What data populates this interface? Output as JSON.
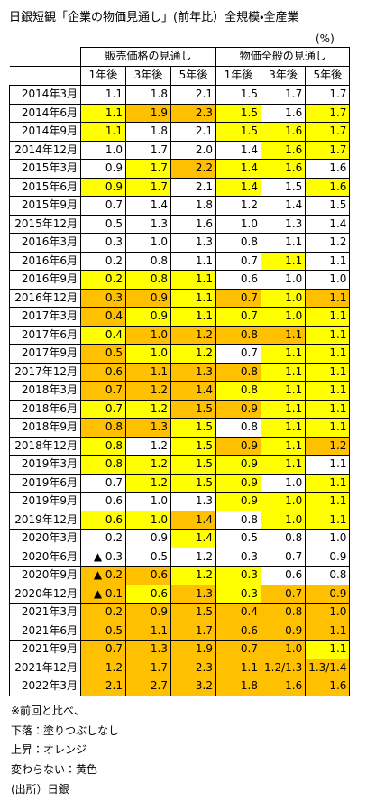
{
  "header": {
    "title": "日銀短観「企業の物価見通し」(前年比）全規模・全産業",
    "unit": "(%)"
  },
  "table": {
    "groups": [
      "販売価格の見通し",
      "物価全般の見通し"
    ],
    "columns": [
      "1年後",
      "3年後",
      "5年後",
      "1年後",
      "3年後",
      "5年後"
    ],
    "rows": [
      {
        "date": "2014年3月",
        "values": [
          "1.1",
          "1.8",
          "2.1",
          "1.5",
          "1.7",
          "1.7"
        ],
        "fills": [
          "#ffffff",
          "#ffffff",
          "#ffffff",
          "#ffffff",
          "#ffffff",
          "#ffffff"
        ]
      },
      {
        "date": "2014年6月",
        "values": [
          "1.1",
          "1.9",
          "2.3",
          "1.5",
          "1.6",
          "1.7"
        ],
        "fills": [
          "#ffff00",
          "#ffc000",
          "#ffc000",
          "#ffff00",
          "#ffffff",
          "#ffff00"
        ]
      },
      {
        "date": "2014年9月",
        "values": [
          "1.1",
          "1.8",
          "2.1",
          "1.5",
          "1.6",
          "1.7"
        ],
        "fills": [
          "#ffff00",
          "#ffffff",
          "#ffffff",
          "#ffff00",
          "#ffff00",
          "#ffff00"
        ]
      },
      {
        "date": "2014年12月",
        "values": [
          "1.0",
          "1.7",
          "2.0",
          "1.4",
          "1.6",
          "1.7"
        ],
        "fills": [
          "#ffffff",
          "#ffffff",
          "#ffffff",
          "#ffffff",
          "#ffff00",
          "#ffff00"
        ]
      },
      {
        "date": "2015年3月",
        "values": [
          "0.9",
          "1.7",
          "2.2",
          "1.4",
          "1.6",
          "1.6"
        ],
        "fills": [
          "#ffffff",
          "#ffff00",
          "#ffc000",
          "#ffff00",
          "#ffff00",
          "#ffffff"
        ]
      },
      {
        "date": "2015年6月",
        "values": [
          "0.9",
          "1.7",
          "2.1",
          "1.4",
          "1.5",
          "1.6"
        ],
        "fills": [
          "#ffff00",
          "#ffff00",
          "#ffffff",
          "#ffff00",
          "#ffffff",
          "#ffff00"
        ]
      },
      {
        "date": "2015年9月",
        "values": [
          "0.7",
          "1.4",
          "1.8",
          "1.2",
          "1.4",
          "1.5"
        ],
        "fills": [
          "#ffffff",
          "#ffffff",
          "#ffffff",
          "#ffffff",
          "#ffffff",
          "#ffffff"
        ]
      },
      {
        "date": "2015年12月",
        "values": [
          "0.5",
          "1.3",
          "1.6",
          "1.0",
          "1.3",
          "1.4"
        ],
        "fills": [
          "#ffffff",
          "#ffffff",
          "#ffffff",
          "#ffffff",
          "#ffffff",
          "#ffffff"
        ]
      },
      {
        "date": "2016年3月",
        "values": [
          "0.3",
          "1.0",
          "1.3",
          "0.8",
          "1.1",
          "1.2"
        ],
        "fills": [
          "#ffffff",
          "#ffffff",
          "#ffffff",
          "#ffffff",
          "#ffffff",
          "#ffffff"
        ]
      },
      {
        "date": "2016年6月",
        "values": [
          "0.2",
          "0.8",
          "1.1",
          "0.7",
          "1.1",
          "1.1"
        ],
        "fills": [
          "#ffffff",
          "#ffffff",
          "#ffffff",
          "#ffffff",
          "#ffff00",
          "#ffffff"
        ]
      },
      {
        "date": "2016年9月",
        "values": [
          "0.2",
          "0.8",
          "1.1",
          "0.6",
          "1.0",
          "1.0"
        ],
        "fills": [
          "#ffff00",
          "#ffff00",
          "#ffff00",
          "#ffffff",
          "#ffffff",
          "#ffffff"
        ]
      },
      {
        "date": "2016年12月",
        "values": [
          "0.3",
          "0.9",
          "1.1",
          "0.7",
          "1.0",
          "1.1"
        ],
        "fills": [
          "#ffc000",
          "#ffc000",
          "#ffff00",
          "#ffc000",
          "#ffff00",
          "#ffc000"
        ]
      },
      {
        "date": "2017年3月",
        "values": [
          "0.4",
          "0.9",
          "1.1",
          "0.7",
          "1.0",
          "1.1"
        ],
        "fills": [
          "#ffc000",
          "#ffff00",
          "#ffff00",
          "#ffff00",
          "#ffff00",
          "#ffff00"
        ]
      },
      {
        "date": "2017年6月",
        "values": [
          "0.4",
          "1.0",
          "1.2",
          "0.8",
          "1.1",
          "1.1"
        ],
        "fills": [
          "#ffff00",
          "#ffc000",
          "#ffc000",
          "#ffc000",
          "#ffc000",
          "#ffff00"
        ]
      },
      {
        "date": "2017年9月",
        "values": [
          "0.5",
          "1.0",
          "1.2",
          "0.7",
          "1.1",
          "1.1"
        ],
        "fills": [
          "#ffc000",
          "#ffff00",
          "#ffff00",
          "#ffffff",
          "#ffff00",
          "#ffff00"
        ]
      },
      {
        "date": "2017年12月",
        "values": [
          "0.6",
          "1.1",
          "1.3",
          "0.8",
          "1.1",
          "1.1"
        ],
        "fills": [
          "#ffc000",
          "#ffc000",
          "#ffc000",
          "#ffc000",
          "#ffff00",
          "#ffff00"
        ]
      },
      {
        "date": "2018年3月",
        "values": [
          "0.7",
          "1.2",
          "1.4",
          "0.8",
          "1.1",
          "1.1"
        ],
        "fills": [
          "#ffc000",
          "#ffc000",
          "#ffc000",
          "#ffff00",
          "#ffff00",
          "#ffff00"
        ]
      },
      {
        "date": "2018年6月",
        "values": [
          "0.7",
          "1.2",
          "1.5",
          "0.9",
          "1.1",
          "1.1"
        ],
        "fills": [
          "#ffff00",
          "#ffff00",
          "#ffc000",
          "#ffc000",
          "#ffff00",
          "#ffff00"
        ]
      },
      {
        "date": "2018年9月",
        "values": [
          "0.8",
          "1.3",
          "1.5",
          "0.8",
          "1.1",
          "1.1"
        ],
        "fills": [
          "#ffc000",
          "#ffc000",
          "#ffff00",
          "#ffffff",
          "#ffff00",
          "#ffff00"
        ]
      },
      {
        "date": "2018年12月",
        "values": [
          "0.8",
          "1.2",
          "1.5",
          "0.9",
          "1.1",
          "1.2"
        ],
        "fills": [
          "#ffff00",
          "#ffffff",
          "#ffff00",
          "#ffc000",
          "#ffff00",
          "#ffc000"
        ]
      },
      {
        "date": "2019年3月",
        "values": [
          "0.8",
          "1.2",
          "1.5",
          "0.9",
          "1.1",
          "1.1"
        ],
        "fills": [
          "#ffff00",
          "#ffff00",
          "#ffff00",
          "#ffff00",
          "#ffff00",
          "#ffffff"
        ]
      },
      {
        "date": "2019年6月",
        "values": [
          "0.7",
          "1.2",
          "1.5",
          "0.9",
          "1.0",
          "1.1"
        ],
        "fills": [
          "#ffffff",
          "#ffff00",
          "#ffff00",
          "#ffff00",
          "#ffffff",
          "#ffff00"
        ]
      },
      {
        "date": "2019年9月",
        "values": [
          "0.6",
          "1.0",
          "1.3",
          "0.9",
          "1.0",
          "1.1"
        ],
        "fills": [
          "#ffffff",
          "#ffffff",
          "#ffffff",
          "#ffff00",
          "#ffff00",
          "#ffff00"
        ]
      },
      {
        "date": "2019年12月",
        "values": [
          "0.6",
          "1.0",
          "1.4",
          "0.8",
          "1.0",
          "1.1"
        ],
        "fills": [
          "#ffff00",
          "#ffff00",
          "#ffc000",
          "#ffffff",
          "#ffff00",
          "#ffff00"
        ]
      },
      {
        "date": "2020年3月",
        "values": [
          "0.2",
          "0.9",
          "1.4",
          "0.5",
          "0.8",
          "1.0"
        ],
        "fills": [
          "#ffffff",
          "#ffffff",
          "#ffff00",
          "#ffffff",
          "#ffffff",
          "#ffffff"
        ]
      },
      {
        "date": "2020年6月",
        "values": [
          "▲ 0.3",
          "0.5",
          "1.2",
          "0.3",
          "0.7",
          "0.9"
        ],
        "fills": [
          "#ffffff",
          "#ffffff",
          "#ffffff",
          "#ffffff",
          "#ffffff",
          "#ffffff"
        ]
      },
      {
        "date": "2020年9月",
        "values": [
          "▲ 0.2",
          "0.6",
          "1.2",
          "0.3",
          "0.6",
          "0.8"
        ],
        "fills": [
          "#ffc000",
          "#ffc000",
          "#ffff00",
          "#ffff00",
          "#ffffff",
          "#ffffff"
        ]
      },
      {
        "date": "2020年12月",
        "values": [
          "▲ 0.1",
          "0.6",
          "1.3",
          "0.3",
          "0.7",
          "0.9"
        ],
        "fills": [
          "#ffc000",
          "#ffff00",
          "#ffc000",
          "#ffff00",
          "#ffc000",
          "#ffc000"
        ]
      },
      {
        "date": "2021年3月",
        "values": [
          "0.2",
          "0.9",
          "1.5",
          "0.4",
          "0.8",
          "1.0"
        ],
        "fills": [
          "#ffc000",
          "#ffc000",
          "#ffc000",
          "#ffc000",
          "#ffc000",
          "#ffc000"
        ]
      },
      {
        "date": "2021年6月",
        "values": [
          "0.5",
          "1.1",
          "1.7",
          "0.6",
          "0.9",
          "1.1"
        ],
        "fills": [
          "#ffc000",
          "#ffc000",
          "#ffc000",
          "#ffc000",
          "#ffc000",
          "#ffc000"
        ]
      },
      {
        "date": "2021年9月",
        "values": [
          "0.7",
          "1.3",
          "1.9",
          "0.7",
          "1.0",
          "1.1"
        ],
        "fills": [
          "#ffc000",
          "#ffc000",
          "#ffc000",
          "#ffc000",
          "#ffc000",
          "#ffff00"
        ]
      },
      {
        "date": "2021年12月",
        "values": [
          "1.2",
          "1.7",
          "2.3",
          "1.1",
          "1.2/1.3",
          "1.3/1.4"
        ],
        "fills": [
          "#ffc000",
          "#ffc000",
          "#ffc000",
          "#ffc000",
          "#ffc000",
          "#ffc000"
        ]
      },
      {
        "date": "2022年3月",
        "values": [
          "2.1",
          "2.7",
          "3.2",
          "1.8",
          "1.6",
          "1.6"
        ],
        "fills": [
          "#ffc000",
          "#ffc000",
          "#ffc000",
          "#ffc000",
          "#ffc000",
          "#ffc000"
        ]
      }
    ]
  },
  "notes": [
    "※前回と比べ、",
    "下落：塗りつぶしなし",
    "上昇：オレンジ",
    "変わらない：黄色",
    "(出所）日銀"
  ]
}
